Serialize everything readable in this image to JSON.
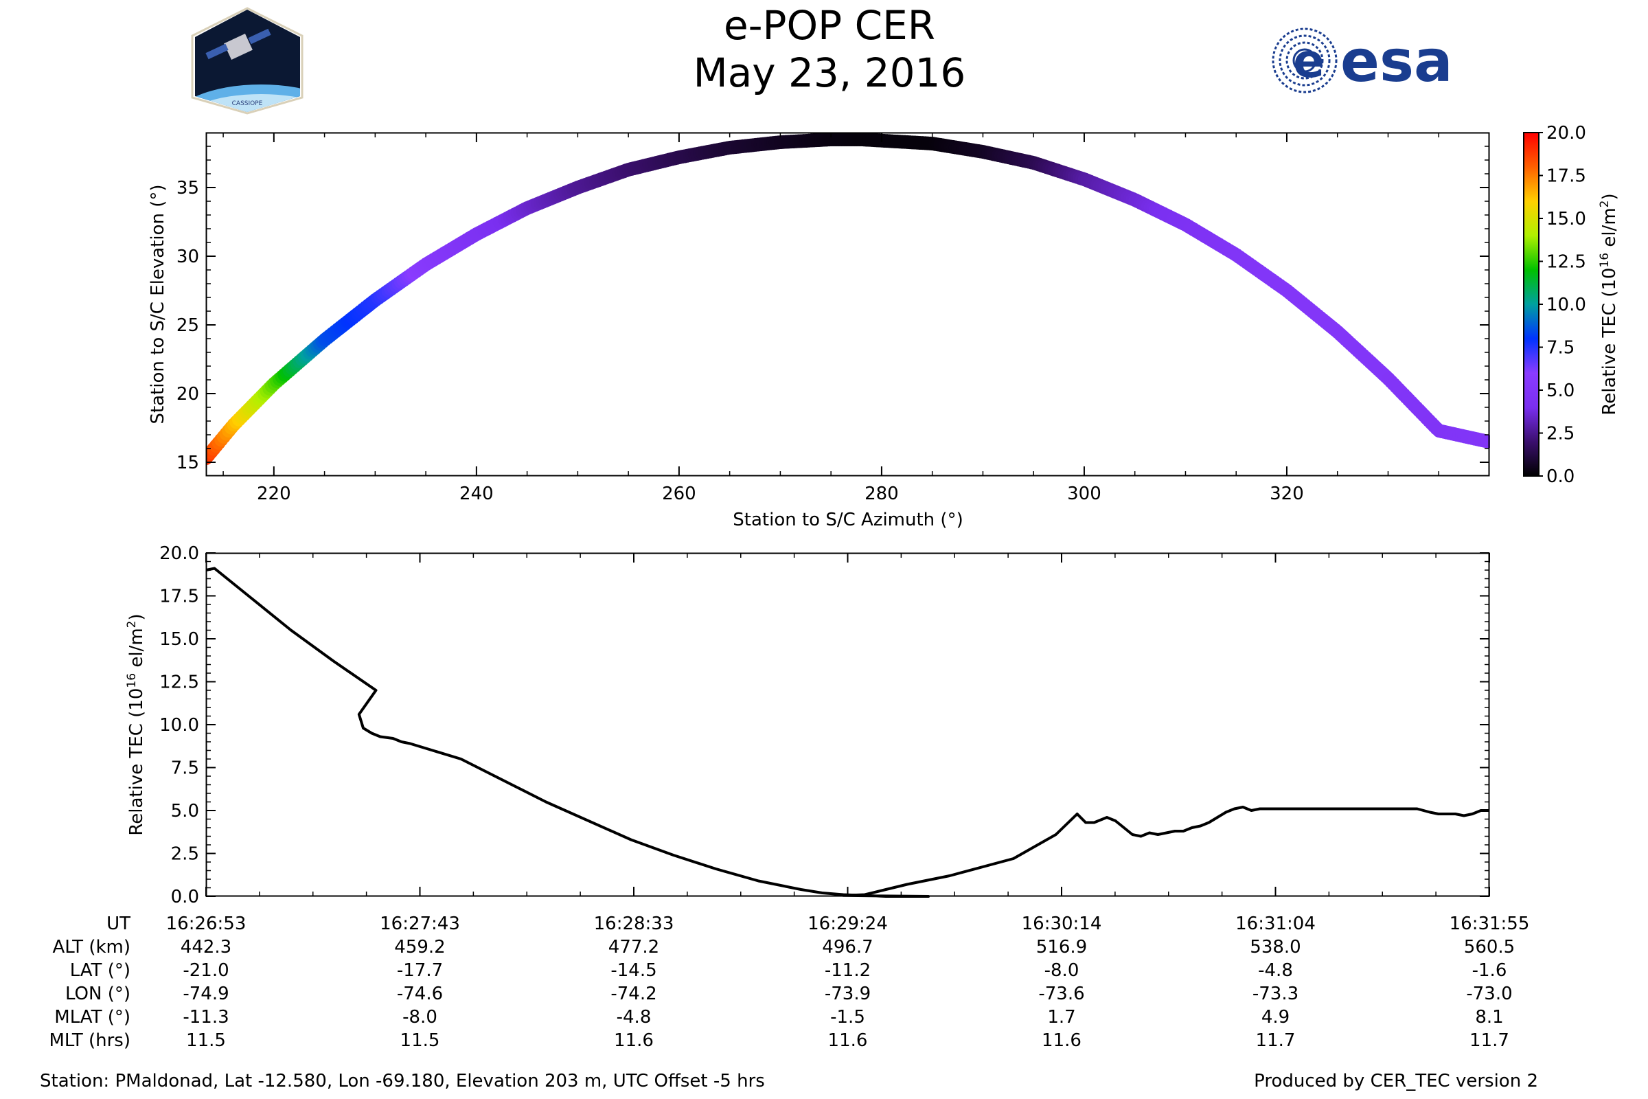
{
  "header": {
    "title": "e-POP CER",
    "date": "May 23, 2016",
    "left_logo_text": "CASSIOPE",
    "right_logo_text": "esa"
  },
  "colors": {
    "line": "#000000",
    "logo_blue": "#1a3d8f",
    "logo_space": "#0b1833",
    "logo_earth": "#5fb0e8"
  },
  "chart_data": [
    {
      "type": "scatter",
      "name": "elevation-azimuth-track",
      "xlabel": "Station to S/C Azimuth (°)",
      "ylabel": "Station to S/C Elevation (°)",
      "xlim": [
        213.3,
        340.0
      ],
      "ylim": [
        14.0,
        39.0
      ],
      "xticks": [
        220,
        240,
        260,
        280,
        300,
        320
      ],
      "yticks": [
        15,
        20,
        25,
        30,
        35
      ],
      "color_by": "Relative TEC (10^16 el/m^2)",
      "track": {
        "azimuth": [
          213.3,
          216.0,
          220.0,
          225.0,
          230.0,
          235.0,
          240.0,
          245.0,
          250.0,
          255.0,
          260.0,
          265.0,
          270.0,
          275.0,
          278.0,
          285.0,
          290.0,
          295.0,
          300.0,
          305.0,
          310.0,
          315.0,
          320.0,
          325.0,
          330.0,
          335.0,
          339.9
        ],
        "elevation": [
          15.3,
          17.7,
          20.7,
          23.9,
          26.8,
          29.4,
          31.6,
          33.5,
          35.0,
          36.3,
          37.2,
          37.9,
          38.3,
          38.5,
          38.5,
          38.2,
          37.6,
          36.8,
          35.6,
          34.1,
          32.3,
          30.1,
          27.5,
          24.5,
          21.1,
          17.3,
          16.5
        ],
        "tec": [
          19.0,
          16.5,
          13.0,
          8.5,
          7.5,
          5.5,
          4.5,
          3.5,
          2.6,
          2.0,
          1.4,
          0.9,
          0.6,
          0.3,
          0.2,
          0.2,
          0.6,
          1.4,
          2.8,
          3.6,
          4.4,
          4.9,
          5.1,
          5.1,
          5.0,
          4.8,
          5.0
        ]
      }
    },
    {
      "type": "line",
      "name": "tec-timeseries",
      "ylabel": "Relative TEC (10^16 el/m^2)",
      "xlim": [
        0,
        302
      ],
      "ylim": [
        0.0,
        20.0
      ],
      "yticks": [
        "0.0",
        "2.5",
        "5.0",
        "7.5",
        "10.0",
        "12.5",
        "15.0",
        "17.5",
        "20.0"
      ],
      "series": [
        {
          "name": "TEC",
          "t": [
            0,
            2,
            10,
            20,
            30,
            40,
            36,
            37,
            39,
            41,
            44,
            46,
            48,
            60,
            80,
            100,
            110,
            120,
            130,
            140,
            145,
            150,
            160,
            170,
            150,
            155,
            160,
            165,
            175,
            190,
            200,
            205,
            207,
            209,
            212,
            214,
            216,
            218,
            220,
            222,
            224,
            226,
            228,
            230,
            232,
            234,
            236,
            238,
            240,
            242,
            244,
            246,
            248,
            250,
            260,
            270,
            280,
            285,
            288,
            290,
            294,
            296,
            298,
            300,
            302
          ],
          "tec": [
            19.0,
            19.1,
            17.5,
            15.5,
            13.7,
            12.0,
            10.6,
            9.8,
            9.5,
            9.3,
            9.2,
            9.0,
            8.9,
            8.0,
            5.5,
            3.3,
            2.4,
            1.6,
            0.9,
            0.4,
            0.2,
            0.1,
            0.0,
            0.0,
            0.05,
            0.1,
            0.4,
            0.7,
            1.2,
            2.2,
            3.6,
            4.8,
            4.3,
            4.3,
            4.6,
            4.4,
            4.0,
            3.6,
            3.5,
            3.7,
            3.6,
            3.7,
            3.8,
            3.8,
            4.0,
            4.1,
            4.3,
            4.6,
            4.9,
            5.1,
            5.2,
            5.0,
            5.1,
            5.1,
            5.1,
            5.1,
            5.1,
            5.1,
            4.9,
            4.8,
            4.8,
            4.7,
            4.8,
            5.0,
            5.0
          ]
        }
      ]
    }
  ],
  "plot1": {
    "xlabel": "Station to S/C Azimuth (°)",
    "ylabel": "Station to S/C Elevation (°)",
    "xticks": [
      "220",
      "240",
      "260",
      "280",
      "300",
      "320"
    ],
    "yticks": [
      "15",
      "20",
      "25",
      "30",
      "35"
    ]
  },
  "colorbar": {
    "label_prefix": "Relative TEC (10",
    "label_sup": "16",
    "label_mid": " el/m",
    "label_sup2": "2",
    "label_suffix": ")",
    "ticks": [
      "0.0",
      "2.5",
      "5.0",
      "7.5",
      "10.0",
      "12.5",
      "15.0",
      "17.5",
      "20.0"
    ],
    "stops": [
      "#000000",
      "#3b0f6e",
      "#7a2ff0",
      "#8a3cff",
      "#0033ff",
      "#00a0a0",
      "#00c000",
      "#b0f000",
      "#ffd000",
      "#ff6000",
      "#ff0000"
    ]
  },
  "plot2": {
    "ylabel_prefix": "Relative TEC (10",
    "ylabel_sup": "16",
    "ylabel_mid": " el/m",
    "ylabel_sup2": "2",
    "ylabel_suffix": ")",
    "yticks": [
      "0.0",
      "2.5",
      "5.0",
      "7.5",
      "10.0",
      "12.5",
      "15.0",
      "17.5",
      "20.0"
    ]
  },
  "table": {
    "row_labels": [
      "UT",
      "ALT (km)",
      "LAT (°)",
      "LON (°)",
      "MLAT (°)",
      "MLT (hrs)"
    ],
    "columns": [
      [
        "16:26:53",
        "442.3",
        "-21.0",
        "-74.9",
        "-11.3",
        "11.5"
      ],
      [
        "16:27:43",
        "459.2",
        "-17.7",
        "-74.6",
        "-8.0",
        "11.5"
      ],
      [
        "16:28:33",
        "477.2",
        "-14.5",
        "-74.2",
        "-4.8",
        "11.6"
      ],
      [
        "16:29:24",
        "496.7",
        "-11.2",
        "-73.9",
        "-1.5",
        "11.6"
      ],
      [
        "16:30:14",
        "516.9",
        "-8.0",
        "-73.6",
        "1.7",
        "11.6"
      ],
      [
        "16:31:04",
        "538.0",
        "-4.8",
        "-73.3",
        "4.9",
        "11.7"
      ],
      [
        "16:31:55",
        "560.5",
        "-1.6",
        "-73.0",
        "8.1",
        "11.7"
      ]
    ]
  },
  "footer": {
    "station": "Station: PMaldonad, Lat -12.580, Lon -69.180, Elevation 203 m, UTC Offset -5 hrs",
    "produced": "Produced by CER_TEC version 2"
  }
}
